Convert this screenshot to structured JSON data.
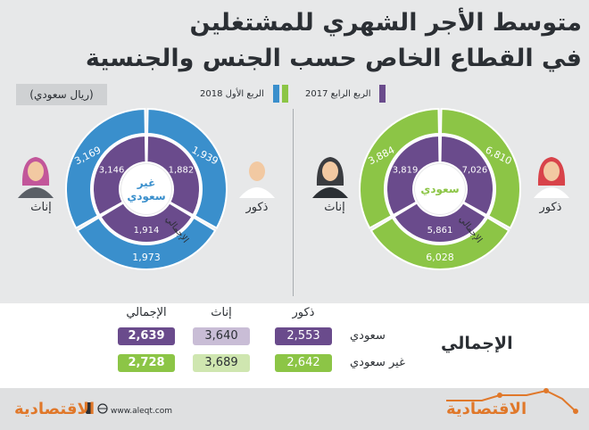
{
  "title": {
    "line1": "متوسط الأجر الشهري للمشتغلين",
    "line2": "في القطاع الخاص حسب الجنس والجنسية"
  },
  "unit": "(ريال سعودي)",
  "legend": {
    "q1_2018": "الربع الأول 2018",
    "q4_2017": "الربع الرابع 2017"
  },
  "colors": {
    "q1_2018": "#3a8fcc",
    "q4_2017": "#8cc546",
    "inner": "#6a4b8c",
    "male_female_arc": "#6a4b8c"
  },
  "icons": {
    "female_nonsaudi": "woman-hijab-icon",
    "male_nonsaudi": "man-tie-icon",
    "female_saudi": "woman-niqab-icon",
    "male_saudi": "man-shemagh-icon",
    "phone": "phone-icon",
    "globe": "globe-icon"
  },
  "chart_data": [
    {
      "type": "pie",
      "center_label": [
        "غير",
        "سعودي"
      ],
      "labels": {
        "female": "إناث",
        "male": "ذكور",
        "total": "الإجمالي"
      },
      "series": [
        {
          "name": "الربع الأول 2018",
          "values": {
            "female": 3169,
            "male": 1939,
            "total": 1973
          }
        },
        {
          "name": "الربع الرابع 2017",
          "values": {
            "female": 3146,
            "male": 1882,
            "total": 1914
          }
        }
      ]
    },
    {
      "type": "pie",
      "center_label": [
        "سعودي"
      ],
      "labels": {
        "female": "إناث",
        "male": "ذكور",
        "total": "الإجمالي"
      },
      "series": [
        {
          "name": "الربع الأول 2018",
          "values": {
            "female": 3884,
            "male": 6810,
            "total": 6028
          }
        },
        {
          "name": "الربع الرابع 2017",
          "values": {
            "female": 3819,
            "male": 7026,
            "total": 5861
          }
        }
      ]
    }
  ],
  "table": {
    "label": "الإجمالي",
    "headers": {
      "total": "الإجمالي",
      "female": "إناث",
      "male": "ذكور"
    },
    "rows": [
      {
        "label": "سعودي",
        "total": "2,639",
        "female": "3,640",
        "male": "2,553"
      },
      {
        "label": "غير سعودي",
        "total": "2,728",
        "female": "3,689",
        "male": "2,642"
      }
    ]
  },
  "footer": {
    "logo_left": "الاقتصادية",
    "url": "www.aleqt.com",
    "logo_right": "الاقتصادية"
  }
}
